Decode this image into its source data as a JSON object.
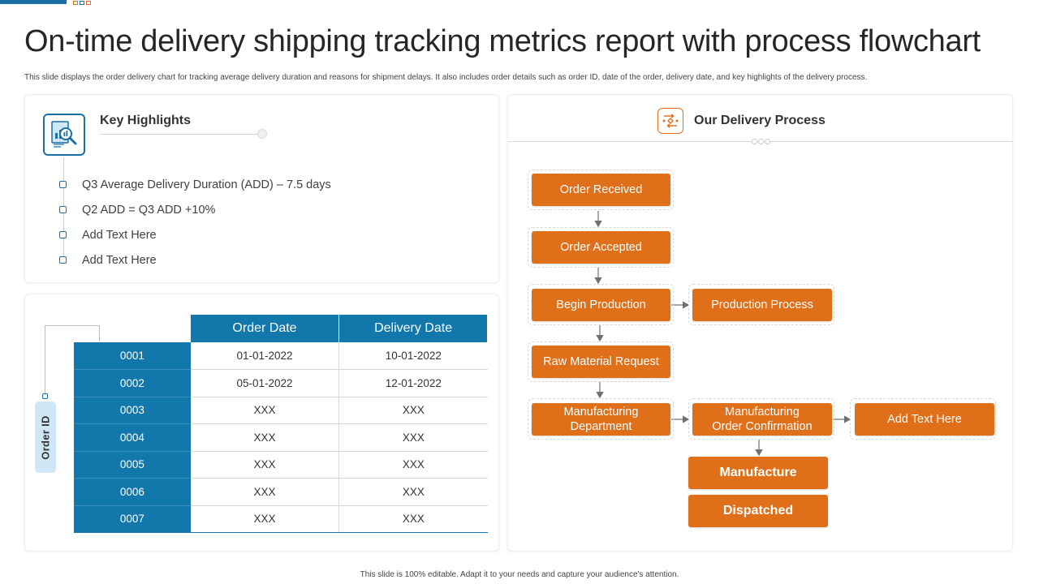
{
  "header": {
    "title": "On-time delivery shipping tracking metrics report with process flowchart",
    "subtitle": "This slide displays the order delivery chart for tracking average delivery duration and reasons for shipment delays. It also includes order details such as order ID,  date of the order, delivery date, and key highlights  of the delivery process."
  },
  "key_highlights": {
    "title": "Key Highlights",
    "icon": "report-magnifier-icon",
    "items": [
      "Q3 Average  Delivery Duration (ADD) – 7.5 days",
      "Q2 ADD  = Q3 ADD +10%",
      "Add Text Here",
      "Add Text Here"
    ]
  },
  "orders": {
    "side_label": "Order ID",
    "columns": [
      "Order Date",
      "Delivery Date"
    ],
    "rows": [
      {
        "id": "0001",
        "order_date": "01-01-2022",
        "delivery_date": "10-01-2022"
      },
      {
        "id": "0002",
        "order_date": "05-01-2022",
        "delivery_date": "12-01-2022"
      },
      {
        "id": "0003",
        "order_date": "XXX",
        "delivery_date": "XXX"
      },
      {
        "id": "0004",
        "order_date": "XXX",
        "delivery_date": "XXX"
      },
      {
        "id": "0005",
        "order_date": "XXX",
        "delivery_date": "XXX"
      },
      {
        "id": "0006",
        "order_date": "XXX",
        "delivery_date": "XXX"
      },
      {
        "id": "0007",
        "order_date": "XXX",
        "delivery_date": "XXX"
      }
    ]
  },
  "process": {
    "title": "Our Delivery Process",
    "icon": "process-flow-icon",
    "steps": {
      "order_received": "Order Received",
      "order_accepted": "Order Accepted",
      "begin_production": "Begin Production",
      "production_process": "Production Process",
      "raw_material_request": "Raw Material  Request",
      "manufacturing_department": "Manufacturing\nDepartment",
      "manufacturing_order_confirmation": "Manufacturing\nOrder Confirmation",
      "add_text_here": "Add Text Here",
      "manufacture": "Manufacture",
      "dispatched": "Dispatched"
    },
    "colors": {
      "box": "#e06f1a",
      "accent": "#1277aa"
    }
  },
  "footer": {
    "note": "This slide is 100% editable.  Adapt it to your needs and capture your audience's attention."
  }
}
